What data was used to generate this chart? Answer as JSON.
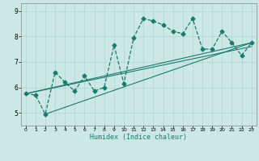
{
  "xlabel": "Humidex (Indice chaleur)",
  "bg_color": "#cce8e5",
  "line_color": "#1a7a6e",
  "grid_color": "#aed4d0",
  "xlim": [
    -0.5,
    23.5
  ],
  "ylim": [
    4.5,
    9.3
  ],
  "yticks": [
    5,
    6,
    7,
    8,
    9
  ],
  "xticks": [
    0,
    1,
    2,
    3,
    4,
    5,
    6,
    7,
    8,
    9,
    10,
    11,
    12,
    13,
    14,
    15,
    16,
    17,
    18,
    19,
    20,
    21,
    22,
    23
  ],
  "series1_x": [
    0,
    1,
    2,
    3,
    4,
    5,
    6,
    7,
    8,
    9,
    10,
    11,
    12,
    13,
    14,
    15,
    16,
    17,
    18,
    19,
    20,
    21,
    22,
    23
  ],
  "series1_y": [
    5.75,
    5.7,
    4.95,
    6.6,
    6.2,
    5.85,
    6.45,
    5.85,
    6.0,
    7.65,
    6.15,
    7.95,
    8.7,
    8.6,
    8.45,
    8.2,
    8.1,
    8.7,
    7.5,
    7.5,
    8.2,
    7.75,
    7.25,
    7.75
  ],
  "trend_lines": [
    {
      "x0": 0,
      "y0": 5.75,
      "x1": 23,
      "y1": 7.75
    },
    {
      "x0": 0,
      "y0": 5.75,
      "x1": 23,
      "y1": 7.6
    },
    {
      "x0": 2,
      "y0": 4.95,
      "x1": 23,
      "y1": 7.75
    }
  ]
}
